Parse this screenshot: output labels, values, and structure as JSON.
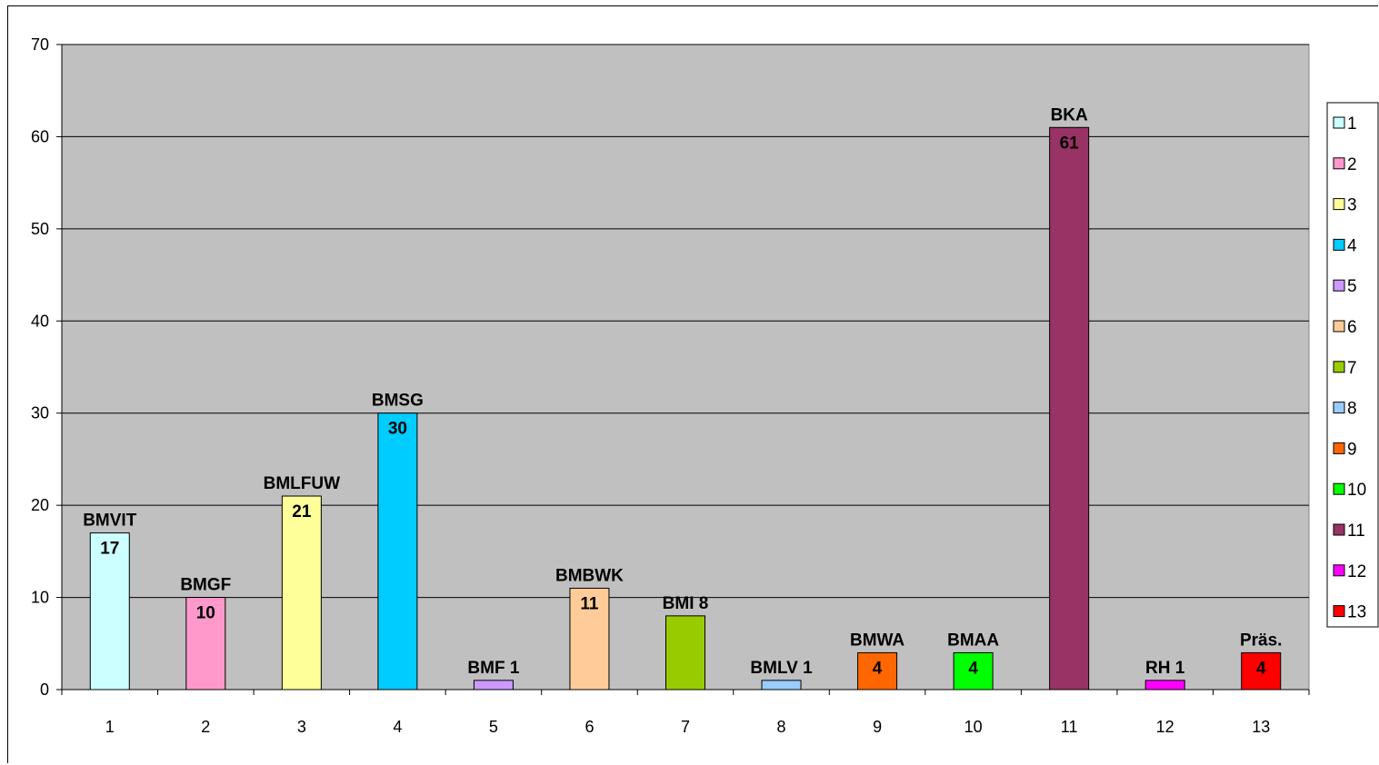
{
  "chart_data": {
    "type": "bar",
    "categories": [
      "1",
      "2",
      "3",
      "4",
      "5",
      "6",
      "7",
      "8",
      "9",
      "10",
      "11",
      "12",
      "13"
    ],
    "values": [
      17,
      10,
      21,
      30,
      1,
      11,
      8,
      1,
      4,
      4,
      61,
      1,
      4
    ],
    "bar_labels": [
      "BMVIT",
      "BMGF",
      "BMLFUW",
      "BMSG",
      "BMF 1",
      "BMBWK",
      "BMI 8",
      "BMLV 1",
      "BMWA",
      "BMAA",
      "BKA",
      "RH 1",
      "Präs."
    ],
    "value_labels": [
      "17",
      "10",
      "21",
      "30",
      "",
      "11",
      "",
      "",
      "4",
      "4",
      "61",
      "",
      "4"
    ],
    "colors": [
      "#ccffff",
      "#ff99cc",
      "#ffff99",
      "#00ccff",
      "#cc99ff",
      "#ffcc99",
      "#99cc00",
      "#99ccff",
      "#ff6600",
      "#00ff00",
      "#993366",
      "#ff00ff",
      "#ff0000"
    ],
    "ylim": [
      0,
      70
    ],
    "yticks": [
      "0",
      "10",
      "20",
      "30",
      "40",
      "50",
      "60",
      "70"
    ],
    "grid": true,
    "plot_background": "#c0c0c0",
    "legend": {
      "position": "right",
      "entries": [
        "1",
        "2",
        "3",
        "4",
        "5",
        "6",
        "7",
        "8",
        "9",
        "10",
        "11",
        "12",
        "13"
      ]
    },
    "title": "",
    "xlabel": "",
    "ylabel": ""
  }
}
